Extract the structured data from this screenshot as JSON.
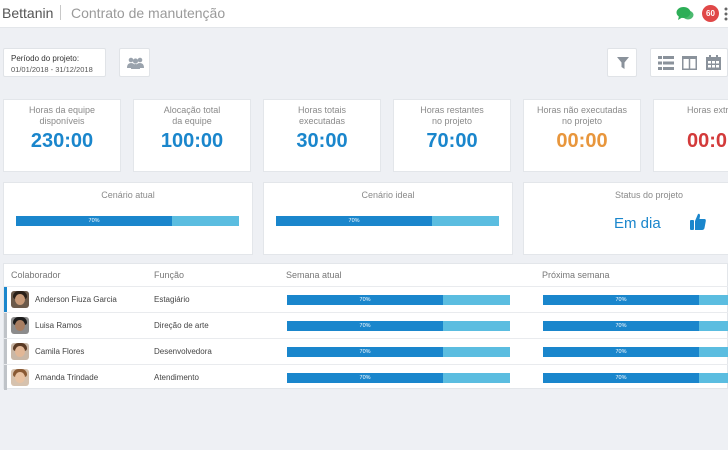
{
  "header": {
    "brand": "Bettanin",
    "project": "Contrato de manutenção",
    "notifications": "60",
    "icons": [
      "chat-icon",
      "more-vertical-icon"
    ],
    "badge_color": "#e04848",
    "chat_color": "#2dae57"
  },
  "toolbar": {
    "period_label": "Período do projeto:",
    "period_value": "01/01/2018 - 31/12/2018",
    "icons": [
      "team-icon",
      "filter-icon",
      "list-view-icon",
      "board-view-icon",
      "calendar-view-icon"
    ]
  },
  "kpis": [
    {
      "label": "Horas da equipe\ndisponíveis",
      "value": "230:00",
      "color": "#1a86cc"
    },
    {
      "label": "Alocação total\nda equipe",
      "value": "100:00",
      "color": "#1a86cc"
    },
    {
      "label": "Horas totais\nexecutadas",
      "value": "30:00",
      "color": "#1a86cc"
    },
    {
      "label": "Horas restantes\nno projeto",
      "value": "70:00",
      "color": "#1a86cc"
    },
    {
      "label": "Horas não executadas\nno projeto",
      "value": "00:00",
      "color": "#e8963c"
    },
    {
      "label": "Horas extra",
      "value": "00:0",
      "color": "#d33a3a"
    }
  ],
  "scenarios": {
    "current": {
      "title": "Cenário atual",
      "progress_label": "70%",
      "progress": 0.7
    },
    "ideal": {
      "title": "Cenário ideal",
      "progress_label": "70%",
      "progress": 0.7
    },
    "status": {
      "title": "Status do projeto",
      "value": "Em dia",
      "icon": "thumbs-up-icon"
    }
  },
  "table": {
    "headers": [
      "Colaborador",
      "Função",
      "Semana atual",
      "Próxima semana"
    ],
    "rows": [
      {
        "name": "Anderson Fiuza Garcia",
        "role": "Estagiário",
        "current": "70%",
        "next": "70%",
        "progress": 0.7,
        "accent": "#1a86cc"
      },
      {
        "name": "Luisa Ramos",
        "role": "Direção de arte",
        "current": "70%",
        "next": "70%",
        "progress": 0.7,
        "accent": "#bfc3c8"
      },
      {
        "name": "Camila Flores",
        "role": "Desenvolvedora",
        "current": "70%",
        "next": "70%",
        "progress": 0.7,
        "accent": "#bfc3c8"
      },
      {
        "name": "Amanda Trindade",
        "role": "Atendimento",
        "current": "70%",
        "next": "70%",
        "progress": 0.7,
        "accent": "#bfc3c8"
      }
    ]
  }
}
